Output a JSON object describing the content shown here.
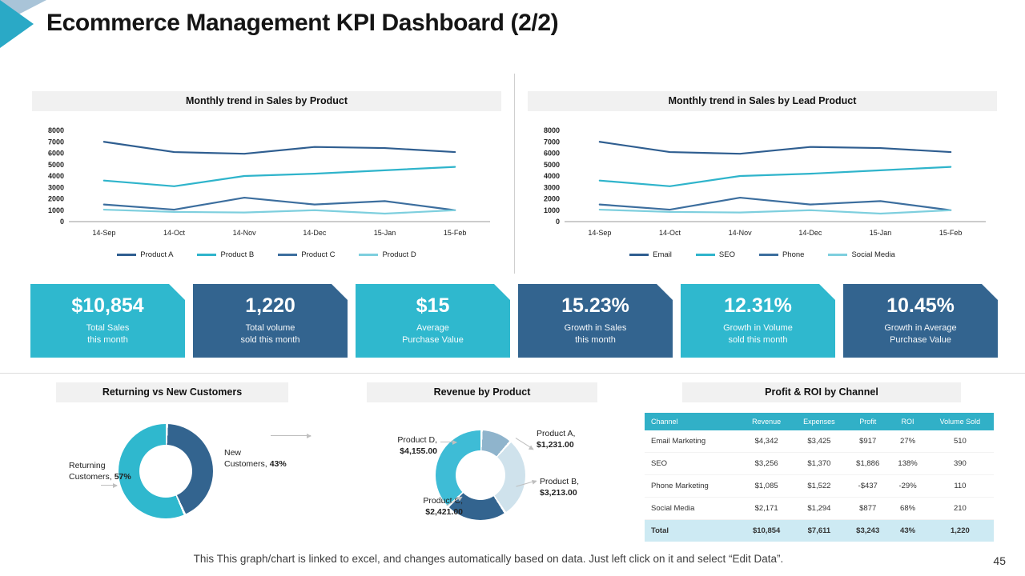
{
  "slide": {
    "title": "Ecommerce Management KPI Dashboard (2/2)",
    "page_number": "45",
    "footer": "This This graph/chart is linked to excel, and changes automatically based on data. Just left click on it and select “Edit Data”."
  },
  "colors": {
    "teal": "#2FB8CE",
    "blue": "#33648F",
    "table_header": "#31B0C7",
    "total_row_bg": "#CDEAF3",
    "title_bar_bg": "#F1F1F1"
  },
  "kpi_cards": [
    {
      "value": "$10,854",
      "label_line1": "Total Sales",
      "label_line2": "this month",
      "color": "#2FB8CE"
    },
    {
      "value": "1,220",
      "label_line1": "Total volume",
      "label_line2": "sold this month",
      "color": "#33648F"
    },
    {
      "value": "$15",
      "label_line1": "Average",
      "label_line2": "Purchase Value",
      "color": "#2FB8CE"
    },
    {
      "value": "15.23%",
      "label_line1": "Growth in Sales",
      "label_line2": "this month",
      "color": "#33648F"
    },
    {
      "value": "12.31%",
      "label_line1": "Growth in Volume",
      "label_line2": "sold this month",
      "color": "#2FB8CE"
    },
    {
      "value": "10.45%",
      "label_line1": "Growth in Average",
      "label_line2": "Purchase Value",
      "color": "#33648F"
    }
  ],
  "chart_data": [
    {
      "type": "line",
      "title": "Monthly trend in Sales by Product",
      "x": [
        "14-Sep",
        "14-Oct",
        "14-Nov",
        "14-Dec",
        "15-Jan",
        "15-Feb"
      ],
      "ylim": [
        0,
        8000
      ],
      "yticks": [
        8000,
        7000,
        6000,
        5000,
        4000,
        3000,
        2000,
        1000,
        0
      ],
      "grid": false,
      "legend_position": "bottom",
      "series": [
        {
          "name": "Product A",
          "color": "#2F5E90",
          "values": [
            7000,
            6100,
            5950,
            6550,
            6450,
            6100
          ]
        },
        {
          "name": "Product B",
          "color": "#2FB4CB",
          "values": [
            3600,
            3100,
            4000,
            4200,
            4500,
            4800
          ]
        },
        {
          "name": "Product C",
          "color": "#3C6E9E",
          "values": [
            1500,
            1050,
            2100,
            1500,
            1800,
            1000
          ]
        },
        {
          "name": "Product D",
          "color": "#7ECFDE",
          "values": [
            1050,
            850,
            800,
            1000,
            700,
            1000
          ]
        }
      ]
    },
    {
      "type": "line",
      "title": "Monthly trend in Sales by  Lead Product",
      "x": [
        "14-Sep",
        "14-Oct",
        "14-Nov",
        "14-Dec",
        "15-Jan",
        "15-Feb"
      ],
      "ylim": [
        0,
        8000
      ],
      "yticks": [
        8000,
        7000,
        6000,
        5000,
        4000,
        3000,
        2000,
        1000,
        0
      ],
      "grid": false,
      "legend_position": "bottom",
      "series": [
        {
          "name": "Email",
          "color": "#2F5E90",
          "values": [
            7000,
            6100,
            5950,
            6550,
            6450,
            6100
          ]
        },
        {
          "name": "SEO",
          "color": "#2FB4CB",
          "values": [
            3600,
            3100,
            4000,
            4200,
            4500,
            4800
          ]
        },
        {
          "name": "Phone",
          "color": "#3C6E9E",
          "values": [
            1500,
            1050,
            2100,
            1500,
            1800,
            1000
          ]
        },
        {
          "name": "Social Media",
          "color": "#7ECFDE",
          "values": [
            1050,
            850,
            800,
            1000,
            700,
            1000
          ]
        }
      ]
    },
    {
      "type": "pie",
      "title": "Returning vs New Customers",
      "donut": true,
      "slices": [
        {
          "label": "New Customers,",
          "display": "43%",
          "value": 43,
          "color": "#33648F"
        },
        {
          "label": "Returning Customers,",
          "display": "57%",
          "value": 57,
          "color": "#2FB8CE"
        }
      ]
    },
    {
      "type": "pie",
      "title": "Revenue by Product",
      "donut": true,
      "slices": [
        {
          "label": "Product A,",
          "display": "$1,231.00",
          "value": 1231,
          "color": "#8FB4CC"
        },
        {
          "label": "Product B,",
          "display": "$3,213.00",
          "value": 3213,
          "color": "#CFE2EC"
        },
        {
          "label": "Product C,",
          "display": "$2,421.00",
          "value": 2421,
          "color": "#33648F"
        },
        {
          "label": "Product D,",
          "display": "$4,155.00",
          "value": 4155,
          "color": "#3EBCD6"
        }
      ]
    },
    {
      "type": "table",
      "title": "Profit & ROI by Channel",
      "columns": [
        "Channel",
        "Revenue",
        "Expenses",
        "Profit",
        "ROI",
        "Volume Sold"
      ],
      "rows": [
        [
          "Email Marketing",
          "$4,342",
          "$3,425",
          "$917",
          "27%",
          "510"
        ],
        [
          "SEO",
          "$3,256",
          "$1,370",
          "$1,886",
          "138%",
          "390"
        ],
        [
          "Phone Marketing",
          "$1,085",
          "$1,522",
          "-$437",
          "-29%",
          "110"
        ],
        [
          "Social Media",
          "$2,171",
          "$1,294",
          "$877",
          "68%",
          "210"
        ]
      ],
      "total_row": [
        "Total",
        "$10,854",
        "$7,611",
        "$3,243",
        "43%",
        "1,220"
      ]
    }
  ]
}
